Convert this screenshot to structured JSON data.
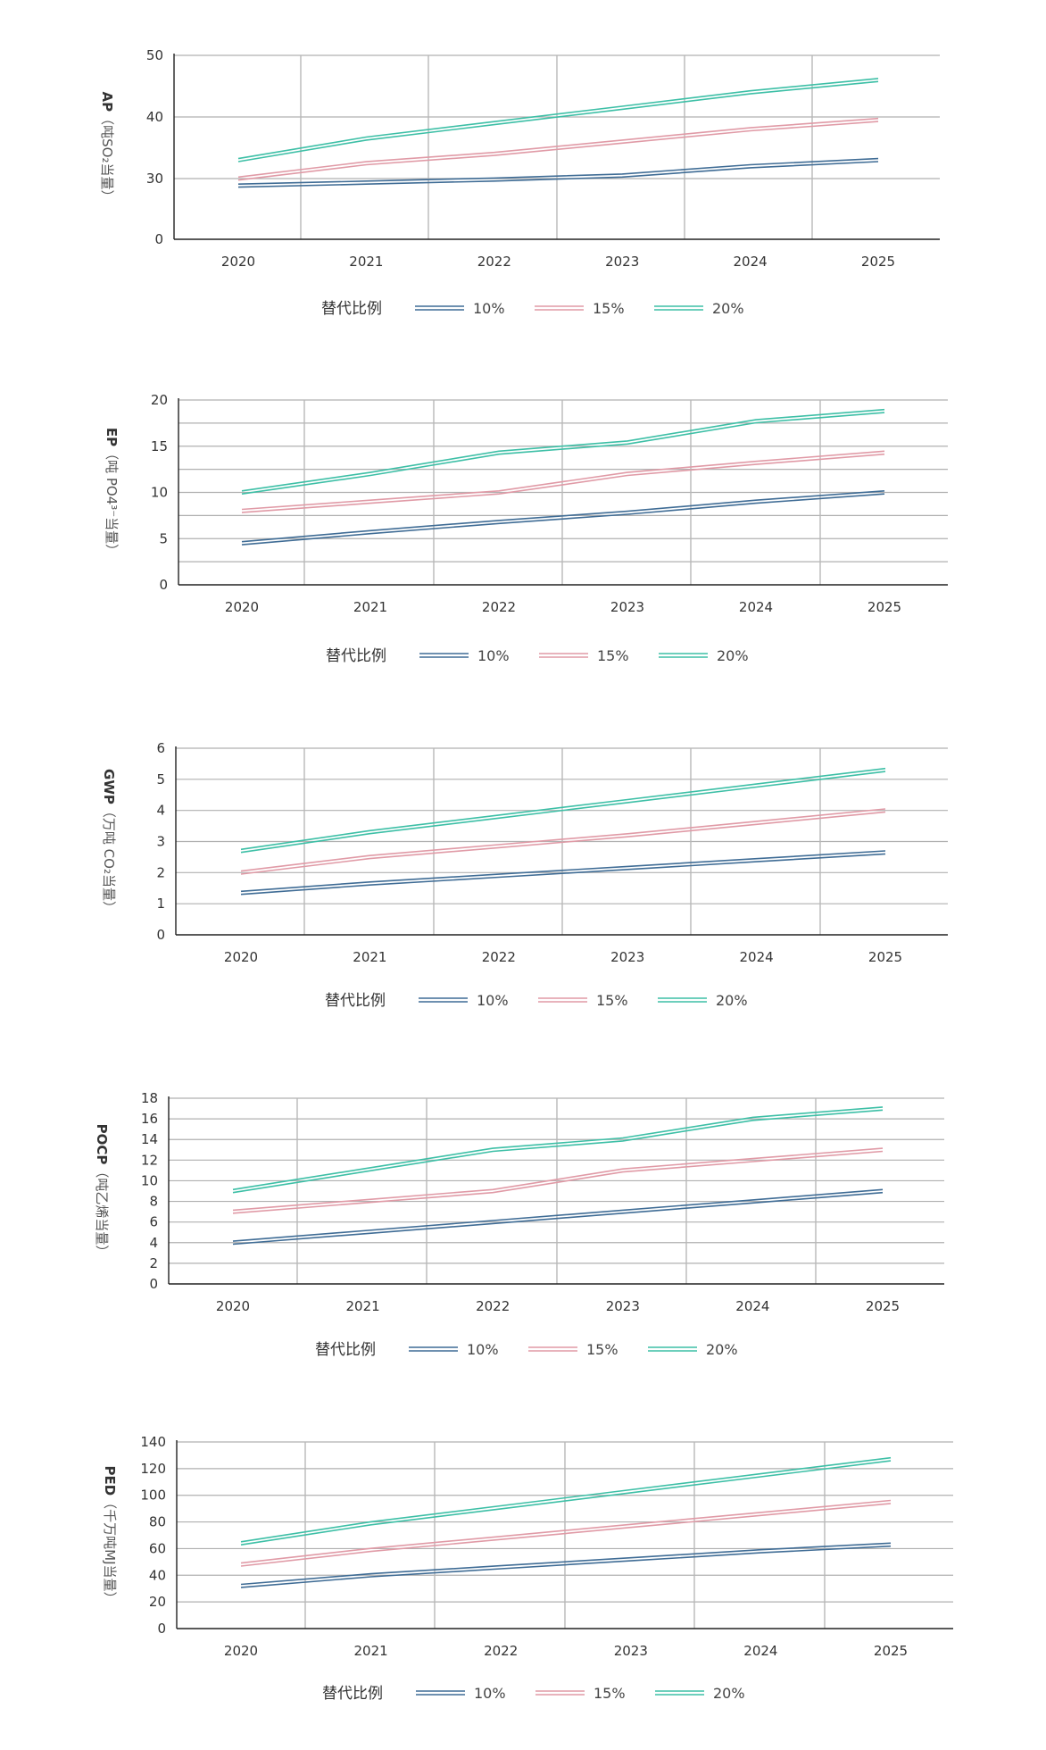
{
  "colors": {
    "10%": "#3f6c95",
    "15%": "#e09aa6",
    "20%": "#3dbfa6"
  },
  "legend_title": "替代比例",
  "chart_data": [
    {
      "type": "line",
      "ylabel_bold": "AP",
      "ylabel_rest": "（吨SO₂当量）",
      "x": [
        "2020",
        "2021",
        "2022",
        "2023",
        "2024",
        "2025"
      ],
      "yticks": [
        0,
        30,
        40,
        50
      ],
      "ylim": [
        0,
        50
      ],
      "scale": "broken-30",
      "grid": true,
      "legend_placement": "bottom",
      "series": [
        {
          "name": "10%",
          "values": [
            26.5,
            28,
            29.5,
            30.5,
            32,
            33
          ]
        },
        {
          "name": "15%",
          "values": [
            30,
            32.5,
            34,
            36,
            38,
            39.5
          ]
        },
        {
          "name": "20%",
          "values": [
            33,
            36.5,
            39,
            41.5,
            44,
            46
          ]
        }
      ]
    },
    {
      "type": "line",
      "ylabel_bold": "EP",
      "ylabel_rest": "（吨 PO4³⁻当量）",
      "x": [
        "2020",
        "2021",
        "2022",
        "2023",
        "2024",
        "2025"
      ],
      "yticks": [
        0,
        5,
        10,
        15,
        20
      ],
      "ylim": [
        0,
        20
      ],
      "scale": "linear",
      "grid": true,
      "legend_placement": "bottom",
      "series": [
        {
          "name": "10%",
          "values": [
            4.5,
            5.7,
            6.8,
            7.8,
            9,
            10
          ]
        },
        {
          "name": "15%",
          "values": [
            8,
            9,
            10,
            12,
            13.2,
            14.3
          ]
        },
        {
          "name": "20%",
          "values": [
            10,
            12,
            14.3,
            15.4,
            17.7,
            18.8
          ]
        }
      ]
    },
    {
      "type": "line",
      "ylabel_bold": "GWP",
      "ylabel_rest": "（万吨 CO₂当量）",
      "x": [
        "2020",
        "2021",
        "2022",
        "2023",
        "2024",
        "2025"
      ],
      "yticks": [
        0,
        1,
        2,
        3,
        4,
        5,
        6
      ],
      "ylim": [
        0,
        6
      ],
      "scale": "linear",
      "grid": true,
      "legend_placement": "bottom",
      "series": [
        {
          "name": "10%",
          "values": [
            1.35,
            1.65,
            1.9,
            2.15,
            2.4,
            2.65
          ]
        },
        {
          "name": "15%",
          "values": [
            2,
            2.5,
            2.85,
            3.2,
            3.6,
            4
          ]
        },
        {
          "name": "20%",
          "values": [
            2.7,
            3.3,
            3.8,
            4.3,
            4.8,
            5.3
          ]
        }
      ]
    },
    {
      "type": "line",
      "ylabel_bold": "POCP",
      "ylabel_rest": "（吨乙烯当量）",
      "x": [
        "2020",
        "2021",
        "2022",
        "2023",
        "2024",
        "2025"
      ],
      "yticks": [
        0,
        2,
        4,
        6,
        8,
        10,
        12,
        14,
        16,
        18
      ],
      "ylim": [
        0,
        18
      ],
      "scale": "linear",
      "grid": true,
      "legend_placement": "bottom",
      "series": [
        {
          "name": "10%",
          "values": [
            4,
            5,
            6,
            7,
            8,
            9
          ]
        },
        {
          "name": "15%",
          "values": [
            7,
            8,
            9,
            11,
            12,
            13
          ]
        },
        {
          "name": "20%",
          "values": [
            9,
            11,
            13,
            14,
            16,
            17
          ]
        }
      ]
    },
    {
      "type": "line",
      "ylabel_bold": "PED",
      "ylabel_rest": "（千万吨MJ当量）",
      "x": [
        "2020",
        "2021",
        "2022",
        "2023",
        "2024",
        "2025"
      ],
      "yticks": [
        0,
        20,
        40,
        60,
        80,
        100,
        120,
        140
      ],
      "ylim": [
        0,
        140
      ],
      "scale": "linear",
      "grid": true,
      "legend_placement": "bottom",
      "series": [
        {
          "name": "10%",
          "values": [
            32,
            40,
            46,
            52,
            58,
            63
          ]
        },
        {
          "name": "15%",
          "values": [
            48,
            59,
            68,
            77,
            86,
            95
          ]
        },
        {
          "name": "20%",
          "values": [
            64,
            79,
            91,
            103,
            115,
            127
          ]
        }
      ]
    }
  ]
}
